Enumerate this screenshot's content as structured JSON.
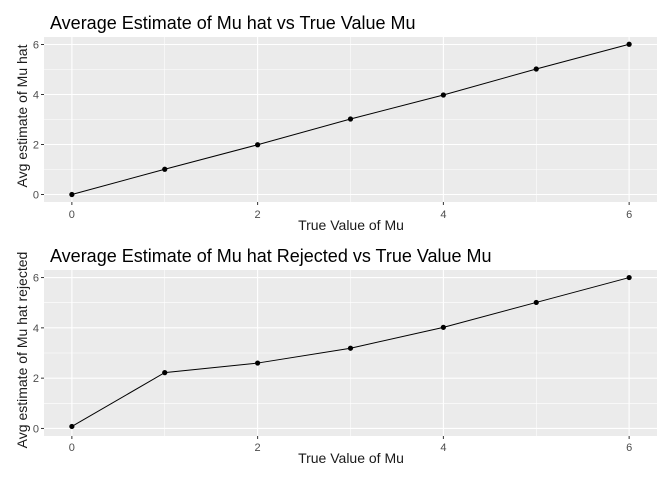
{
  "chart_data": [
    {
      "type": "line",
      "title": "Average Estimate of Mu hat vs True Value Mu",
      "xlabel": "True Value of Mu",
      "ylabel": "Avg estimate of Mu hat",
      "x": [
        0,
        1,
        2,
        3,
        4,
        5,
        6
      ],
      "series": [
        {
          "values": [
            0.0,
            1.01,
            1.99,
            3.02,
            3.98,
            5.02,
            6.01
          ]
        }
      ],
      "xlim": [
        -0.3,
        6.3
      ],
      "ylim": [
        -0.3,
        6.3
      ],
      "xticks": [
        0,
        2,
        4,
        6
      ],
      "yticks": [
        0,
        2,
        4,
        6
      ],
      "grid": true,
      "markers": true,
      "colors": {
        "panel": "#ebebeb",
        "grid": "#ffffff",
        "line": "#000000"
      }
    },
    {
      "type": "line",
      "title": "Average Estimate of Mu hat Rejected vs True Value Mu",
      "xlabel": "True Value of Mu",
      "ylabel": "Avg estimate of Mu hat rejected",
      "x": [
        0,
        1,
        2,
        3,
        4,
        5,
        6
      ],
      "series": [
        {
          "values": [
            0.08,
            2.22,
            2.6,
            3.19,
            4.02,
            5.01,
            6.0
          ]
        }
      ],
      "xlim": [
        -0.3,
        6.3
      ],
      "ylim": [
        -0.3,
        6.3
      ],
      "xticks": [
        0,
        2,
        4,
        6
      ],
      "yticks": [
        0,
        2,
        4,
        6
      ],
      "grid": true,
      "markers": true,
      "colors": {
        "panel": "#ebebeb",
        "grid": "#ffffff",
        "line": "#000000"
      }
    }
  ]
}
